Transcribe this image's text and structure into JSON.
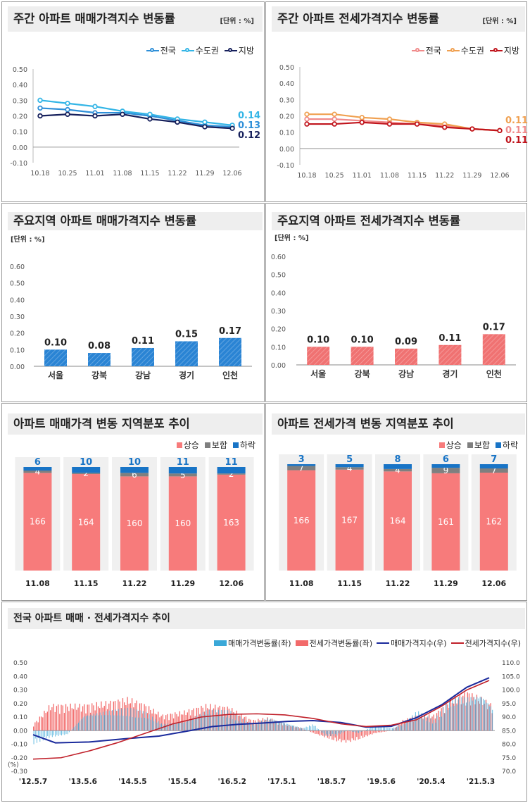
{
  "panels": {
    "p1": {
      "title": "주간 아파트 매매가격지수 변동률",
      "unit": "[단위 : %]"
    },
    "p2": {
      "title": "주간 아파트 전세가격지수 변동률",
      "unit": "[단위 : %]"
    },
    "p3": {
      "title": "주요지역 아파트 매매가격지수 변동률",
      "unit": "[단위 : %]"
    },
    "p4": {
      "title": "주요지역 아파트 전세가격지수 변동률",
      "unit": "[단위 : %]"
    },
    "p5": {
      "title": "아파트 매매가격 변동 지역분포 추이"
    },
    "p6": {
      "title": "아파트 전세가격 변동 지역분포 추이"
    },
    "p7": {
      "title": "전국 아파트 매매 · 전세가격지수 추이"
    }
  },
  "chart_data": [
    {
      "id": "weekly_sale",
      "type": "line",
      "title": "주간 아파트 매매가격지수 변동률",
      "x": [
        "10.18",
        "10.25",
        "11.01",
        "11.08",
        "11.15",
        "11.22",
        "11.29",
        "12.06"
      ],
      "ylim": [
        -0.1,
        0.5
      ],
      "yticks": [
        "0.50",
        "0.40",
        "0.30",
        "0.20",
        "0.10",
        "0.00",
        "-0.10"
      ],
      "series": [
        {
          "name": "전국",
          "color": "#2e8fd8",
          "values": [
            0.25,
            0.24,
            0.22,
            0.22,
            0.2,
            0.17,
            0.14,
            0.13
          ]
        },
        {
          "name": "수도권",
          "color": "#33b5e6",
          "values": [
            0.3,
            0.28,
            0.26,
            0.23,
            0.21,
            0.18,
            0.16,
            0.14
          ]
        },
        {
          "name": "지방",
          "color": "#16205c",
          "values": [
            0.2,
            0.21,
            0.2,
            0.21,
            0.18,
            0.16,
            0.13,
            0.12
          ]
        }
      ],
      "end_labels": [
        {
          "text": "0.14",
          "color": "#33b5e6"
        },
        {
          "text": "0.13",
          "color": "#2e8fd8"
        },
        {
          "text": "0.12",
          "color": "#16205c"
        }
      ]
    },
    {
      "id": "weekly_jeonse",
      "type": "line",
      "title": "주간 아파트 전세가격지수 변동률",
      "x": [
        "10.18",
        "10.25",
        "11.01",
        "11.08",
        "11.15",
        "11.22",
        "11.29",
        "12.06"
      ],
      "ylim": [
        -0.1,
        0.5
      ],
      "yticks": [
        "0.50",
        "0.40",
        "0.30",
        "0.20",
        "0.10",
        "0.00",
        "-0.10"
      ],
      "series": [
        {
          "name": "전국",
          "color": "#f08a8a",
          "values": [
            0.18,
            0.18,
            0.17,
            0.16,
            0.15,
            0.14,
            0.12,
            0.11
          ]
        },
        {
          "name": "수도권",
          "color": "#f0a050",
          "values": [
            0.21,
            0.21,
            0.19,
            0.18,
            0.16,
            0.15,
            0.12,
            0.11
          ]
        },
        {
          "name": "지방",
          "color": "#c0141c",
          "values": [
            0.15,
            0.15,
            0.16,
            0.15,
            0.15,
            0.13,
            0.12,
            0.11
          ]
        }
      ],
      "end_labels": [
        {
          "text": "0.11",
          "color": "#f0a050"
        },
        {
          "text": "0.11",
          "color": "#f08a8a"
        },
        {
          "text": "0.11",
          "color": "#c0141c"
        }
      ]
    },
    {
      "id": "region_sale",
      "type": "bar",
      "title": "주요지역 아파트 매매가격지수 변동률",
      "categories": [
        "서울",
        "강북",
        "강남",
        "경기",
        "인천"
      ],
      "values": [
        0.1,
        0.08,
        0.11,
        0.15,
        0.17
      ],
      "labels": [
        "0.10",
        "0.08",
        "0.11",
        "0.15",
        "0.17"
      ],
      "ylim": [
        0,
        0.6
      ],
      "yticks": [
        "0.60",
        "0.50",
        "0.40",
        "0.30",
        "0.20",
        "0.10",
        "0.00"
      ],
      "color": "#2a84d4"
    },
    {
      "id": "region_jeonse",
      "type": "bar",
      "title": "주요지역 아파트 전세가격지수 변동률",
      "categories": [
        "서울",
        "강북",
        "강남",
        "경기",
        "인천"
      ],
      "values": [
        0.1,
        0.1,
        0.09,
        0.11,
        0.17
      ],
      "labels": [
        "0.10",
        "0.10",
        "0.09",
        "0.11",
        "0.17"
      ],
      "ylim": [
        0,
        0.6
      ],
      "yticks": [
        "0.60",
        "0.50",
        "0.40",
        "0.30",
        "0.20",
        "0.10",
        "0.00"
      ],
      "color": "#f07272"
    },
    {
      "id": "dist_sale",
      "type": "bar",
      "title": "아파트 매매가격 변동 지역분포 추이",
      "categories": [
        "11.08",
        "11.15",
        "11.22",
        "11.29",
        "12.06"
      ],
      "series": [
        {
          "name": "상승",
          "color": "#f77b7b",
          "values": [
            166,
            164,
            160,
            160,
            163
          ]
        },
        {
          "name": "보합",
          "color": "#7f7f7f",
          "values": [
            4,
            2,
            6,
            5,
            2
          ]
        },
        {
          "name": "하락",
          "color": "#1874c6",
          "values": [
            6,
            10,
            10,
            11,
            11
          ]
        }
      ]
    },
    {
      "id": "dist_jeonse",
      "type": "bar",
      "title": "아파트 전세가격 변동 지역분포 추이",
      "categories": [
        "11.08",
        "11.15",
        "11.22",
        "11.29",
        "12.06"
      ],
      "series": [
        {
          "name": "상승",
          "color": "#f77b7b",
          "values": [
            166,
            167,
            164,
            161,
            162
          ]
        },
        {
          "name": "보합",
          "color": "#7f7f7f",
          "values": [
            7,
            4,
            4,
            9,
            7
          ]
        },
        {
          "name": "하락",
          "color": "#1874c6",
          "values": [
            3,
            5,
            8,
            6,
            7
          ]
        }
      ]
    },
    {
      "id": "national_trend",
      "type": "line",
      "title": "전국 아파트 매매 · 전세가격지수 추이",
      "x_ticks": [
        "'12.5.7",
        "'13.5.6",
        "'14.5.5",
        "'15.5.4",
        "'16.5.2",
        "'17.5.1",
        "'18.5.7",
        "'19.5.6",
        "'20.5.4",
        "'21.5.3"
      ],
      "y_left": {
        "ylim": [
          -0.3,
          0.5
        ],
        "ticks": [
          "0.50",
          "0.40",
          "0.30",
          "0.20",
          "0.10",
          "0.00",
          "-0.10",
          "-0.20",
          "-0.30"
        ],
        "unit": "(%)"
      },
      "y_right": {
        "ylim": [
          70.0,
          110.0
        ],
        "ticks": [
          "110.0",
          "105.0",
          "100.0",
          "95.0",
          "90.0",
          "85.0",
          "80.0",
          "75.0",
          "70.0"
        ]
      },
      "legend": [
        "매매가격변동률(좌)",
        "전세가격변동률(좌)",
        "매매가격지수(우)",
        "전세가격지수(우)"
      ],
      "colors": [
        "#3aa8d8",
        "#f26a6a",
        "#1a2a9c",
        "#c0202a"
      ],
      "sale_index": [
        [
          0,
          83.5
        ],
        [
          8,
          80.5
        ],
        [
          20,
          80.8
        ],
        [
          33,
          82.0
        ],
        [
          45,
          83.0
        ],
        [
          55,
          84.8
        ],
        [
          64,
          86.5
        ],
        [
          73,
          87.3
        ],
        [
          82,
          87.8
        ],
        [
          91,
          88.4
        ],
        [
          100,
          88.7
        ],
        [
          110,
          88.0
        ],
        [
          119,
          86.3
        ],
        [
          128,
          86.6
        ],
        [
          137,
          89.8
        ],
        [
          146,
          94.5
        ],
        [
          155,
          101.0
        ],
        [
          163,
          104.5
        ]
      ],
      "jeonse_index": [
        [
          0,
          74.5
        ],
        [
          10,
          75.0
        ],
        [
          20,
          77.5
        ],
        [
          30,
          80.5
        ],
        [
          40,
          84.0
        ],
        [
          50,
          87.5
        ],
        [
          60,
          90.0
        ],
        [
          70,
          91.0
        ],
        [
          80,
          91.2
        ],
        [
          90,
          90.8
        ],
        [
          100,
          89.5
        ],
        [
          110,
          87.5
        ],
        [
          119,
          86.5
        ],
        [
          128,
          87.0
        ],
        [
          137,
          89.0
        ],
        [
          146,
          94.0
        ],
        [
          155,
          100.0
        ],
        [
          163,
          103.5
        ]
      ],
      "sale_change_env": [
        [
          0,
          -0.1
        ],
        [
          6,
          -0.05
        ],
        [
          12,
          -0.03
        ],
        [
          18,
          0.12
        ],
        [
          26,
          0.15
        ],
        [
          34,
          0.17
        ],
        [
          40,
          0.14
        ],
        [
          46,
          0.05
        ],
        [
          54,
          0.07
        ],
        [
          62,
          0.16
        ],
        [
          70,
          0.15
        ],
        [
          78,
          0.05
        ],
        [
          84,
          0.1
        ],
        [
          90,
          0.06
        ],
        [
          96,
          0.02
        ],
        [
          100,
          0.05
        ],
        [
          104,
          -0.04
        ],
        [
          108,
          -0.04
        ],
        [
          112,
          0.0
        ],
        [
          116,
          -0.02
        ],
        [
          122,
          0.04
        ],
        [
          128,
          0.02
        ],
        [
          132,
          0.05
        ],
        [
          137,
          0.15
        ],
        [
          143,
          0.08
        ],
        [
          149,
          0.25
        ],
        [
          155,
          0.26
        ],
        [
          160,
          0.28
        ],
        [
          164,
          0.18
        ]
      ],
      "jeonse_change_env": [
        [
          0,
          0.05
        ],
        [
          6,
          0.2
        ],
        [
          12,
          0.2
        ],
        [
          18,
          0.2
        ],
        [
          26,
          0.22
        ],
        [
          34,
          0.25
        ],
        [
          40,
          0.2
        ],
        [
          46,
          0.12
        ],
        [
          54,
          0.15
        ],
        [
          62,
          0.2
        ],
        [
          70,
          0.18
        ],
        [
          78,
          0.08
        ],
        [
          84,
          0.1
        ],
        [
          90,
          0.05
        ],
        [
          96,
          0.02
        ],
        [
          100,
          -0.02
        ],
        [
          104,
          -0.05
        ],
        [
          108,
          -0.08
        ],
        [
          112,
          -0.09
        ],
        [
          116,
          -0.07
        ],
        [
          122,
          -0.02
        ],
        [
          128,
          0.0
        ],
        [
          132,
          0.08
        ],
        [
          137,
          0.12
        ],
        [
          143,
          0.12
        ],
        [
          149,
          0.24
        ],
        [
          155,
          0.3
        ],
        [
          160,
          0.25
        ],
        [
          164,
          0.2
        ]
      ]
    }
  ]
}
